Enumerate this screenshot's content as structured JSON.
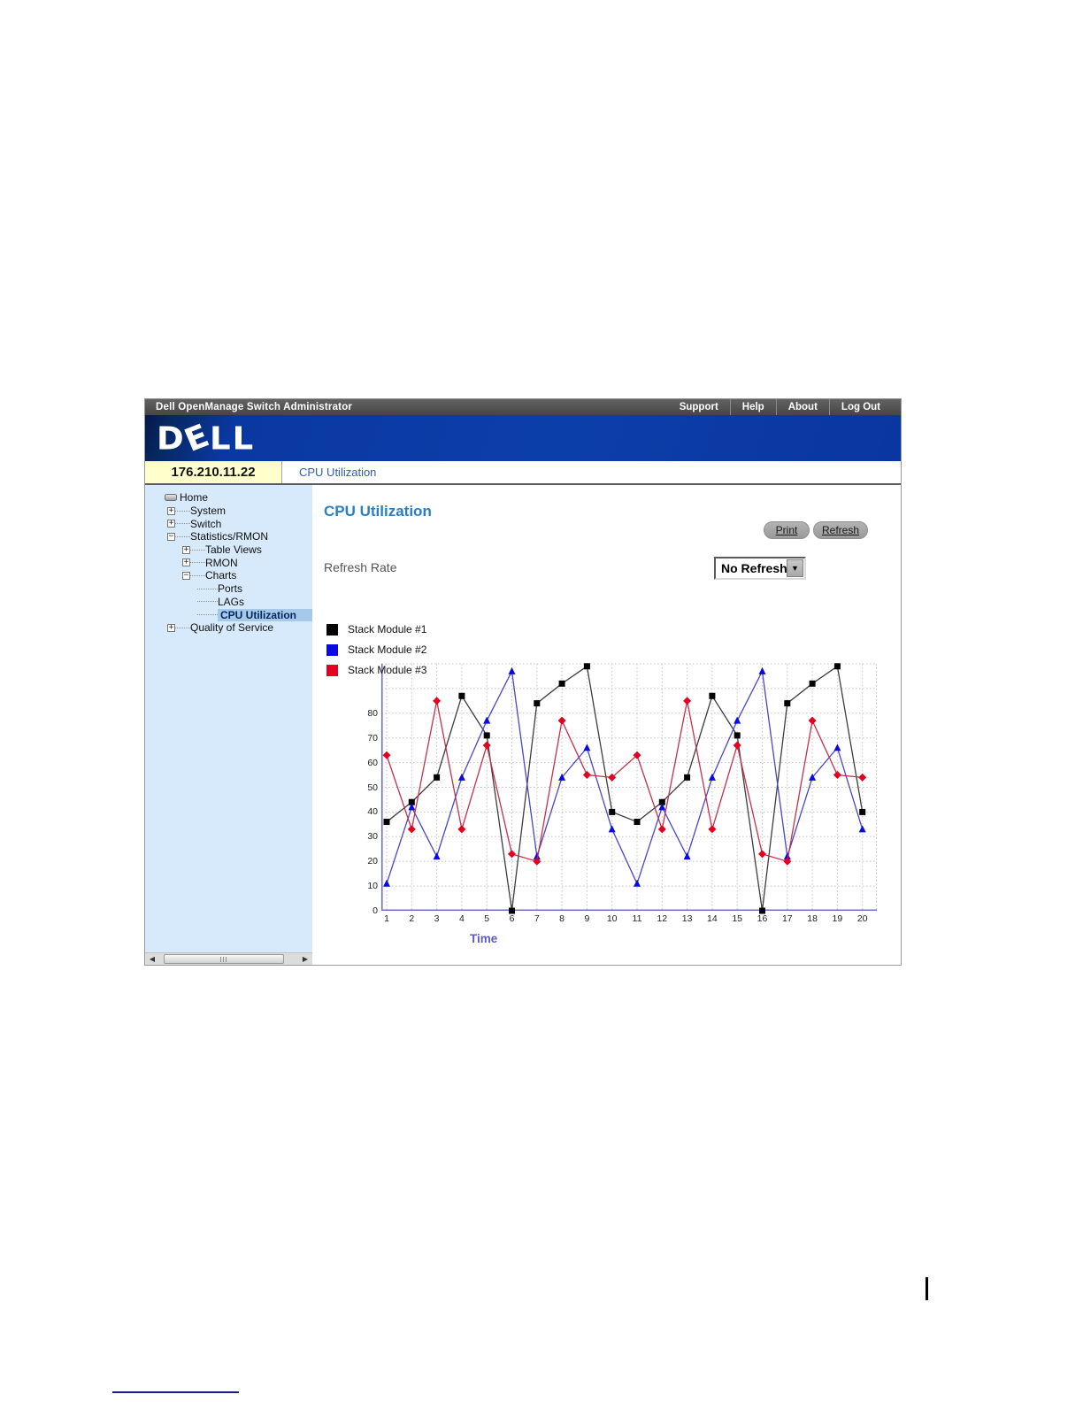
{
  "topbar": {
    "title": "Dell OpenManage Switch Administrator",
    "links": [
      "Support",
      "Help",
      "About",
      "Log Out"
    ]
  },
  "brand": {
    "logo_text": "DELL"
  },
  "address_bar": {
    "ip": "176.210.11.22",
    "breadcrumb": "CPU Utilization"
  },
  "sidebar": {
    "items": [
      {
        "label": "Home",
        "level": 0,
        "icon": "home",
        "expand": null,
        "selected": false
      },
      {
        "label": "System",
        "level": 1,
        "expand": "+",
        "selected": false
      },
      {
        "label": "Switch",
        "level": 1,
        "expand": "+",
        "selected": false
      },
      {
        "label": "Statistics/RMON",
        "level": 1,
        "expand": "-",
        "selected": false
      },
      {
        "label": "Table Views",
        "level": 2,
        "expand": "+",
        "selected": false
      },
      {
        "label": "RMON",
        "level": 2,
        "expand": "+",
        "selected": false
      },
      {
        "label": "Charts",
        "level": 2,
        "expand": "-",
        "selected": false
      },
      {
        "label": "Ports",
        "level": 3,
        "expand": null,
        "selected": false
      },
      {
        "label": "LAGs",
        "level": 3,
        "expand": null,
        "selected": false
      },
      {
        "label": "CPU Utilization",
        "level": 3,
        "expand": null,
        "selected": true
      },
      {
        "label": "Quality of Service",
        "level": 1,
        "expand": "+",
        "selected": false
      }
    ]
  },
  "main": {
    "title": "CPU Utilization",
    "print_label": "Print",
    "refresh_label": "Refresh",
    "refresh_rate_label": "Refresh Rate",
    "refresh_rate_value": "No Refresh"
  },
  "chart_data": {
    "type": "line",
    "title": "",
    "xlabel": "Time",
    "ylabel": "",
    "x": [
      1,
      2,
      3,
      4,
      5,
      6,
      7,
      8,
      9,
      10,
      11,
      12,
      13,
      14,
      15,
      16,
      17,
      18,
      19,
      20
    ],
    "xlim": [
      1,
      20
    ],
    "ylim": [
      0,
      100
    ],
    "yticks": [
      0,
      10,
      20,
      30,
      40,
      50,
      60,
      70,
      80
    ],
    "grid": true,
    "legend_position": "top-left",
    "series": [
      {
        "name": "Stack Module #1",
        "marker": "square",
        "marker_color": "#000000",
        "line_color": "#3d3d3d",
        "values": [
          36,
          44,
          54,
          87,
          71,
          0,
          84,
          92,
          99,
          40,
          36,
          44,
          54,
          87,
          71,
          0,
          84,
          92,
          99,
          40
        ]
      },
      {
        "name": "Stack Module #2",
        "marker": "triangle",
        "marker_color": "#0a0ae0",
        "line_color": "#4747c8",
        "values": [
          11,
          42,
          22,
          54,
          77,
          97,
          22,
          54,
          66,
          33,
          11,
          42,
          22,
          54,
          77,
          97,
          22,
          54,
          66,
          33
        ]
      },
      {
        "name": "Stack Module #3",
        "marker": "diamond",
        "marker_color": "#e4001e",
        "line_color": "#c5304a",
        "values": [
          63,
          33,
          85,
          33,
          67,
          23,
          20,
          77,
          55,
          54,
          63,
          33,
          85,
          33,
          67,
          23,
          20,
          77,
          55,
          54
        ]
      }
    ]
  },
  "colors": {
    "banner_blue": "#0a38a2",
    "sidebar_blue": "#d7eafc",
    "selection_blue": "#a6c9ea",
    "title_blue": "#2a7ec2",
    "axis_purple": "#7070c0",
    "ip_cell_yellow": "#ffffcc"
  }
}
